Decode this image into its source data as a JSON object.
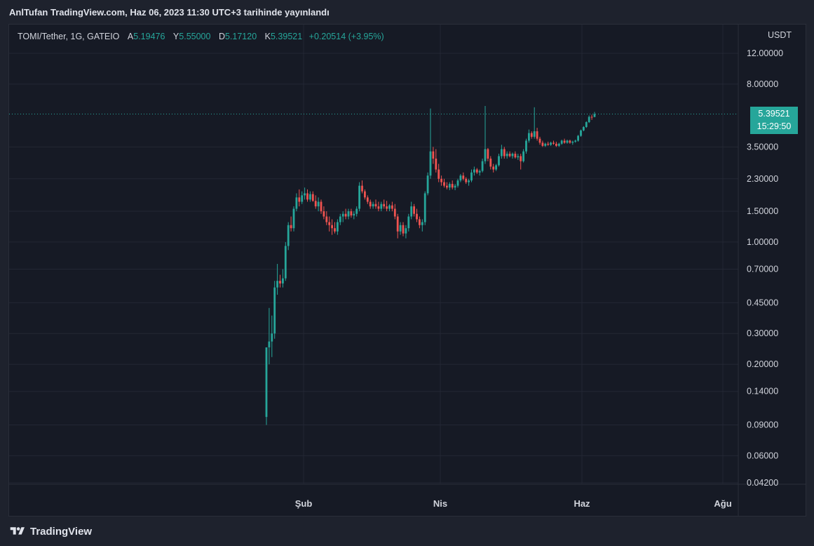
{
  "header": {
    "publish_text": "AnlTufan TradingView.com, Haz 06, 2023 11:30 UTC+3 tarihinde yayınlandı"
  },
  "legend": {
    "symbol": "TOMI/Tether, 1G, GATEIO",
    "open_label": "A",
    "open": "5.19476",
    "high_label": "Y",
    "high": "5.55000",
    "low_label": "D",
    "low": "5.17120",
    "close_label": "K",
    "close": "5.39521",
    "change": "+0.20514 (+3.95%)"
  },
  "axis": {
    "unit": "USDT"
  },
  "last_price": {
    "price": "5.39521",
    "countdown": "15:29:50"
  },
  "footer": {
    "brand": "TradingView"
  },
  "colors": {
    "up": "#26a69a",
    "down": "#ef5350",
    "background": "#161a25"
  },
  "chart_data": {
    "type": "candlestick",
    "scale": "log",
    "grid": true,
    "y_ticks": [
      "12.00000",
      "8.00000",
      "5.39521",
      "3.50000",
      "2.30000",
      "1.50000",
      "1.00000",
      "0.70000",
      "0.45000",
      "0.30000",
      "0.20000",
      "0.14000",
      "0.09000",
      "0.06000",
      "0.04200"
    ],
    "y_tick_values": [
      12,
      8,
      3.5,
      2.3,
      1.5,
      1.0,
      0.7,
      0.45,
      0.3,
      0.2,
      0.14,
      0.09,
      0.06,
      0.042
    ],
    "x_labels": [
      "Şub",
      "Nis",
      "Haz",
      "Ağu"
    ],
    "last_close": 5.39521,
    "series": [
      {
        "d": 0,
        "o": 0.1,
        "h": 0.25,
        "l": 0.09,
        "c": 0.25
      },
      {
        "d": 1,
        "o": 0.25,
        "h": 0.42,
        "l": 0.2,
        "c": 0.27
      },
      {
        "d": 2,
        "o": 0.27,
        "h": 0.38,
        "l": 0.22,
        "c": 0.3
      },
      {
        "d": 3,
        "o": 0.3,
        "h": 0.6,
        "l": 0.28,
        "c": 0.55
      },
      {
        "d": 4,
        "o": 0.55,
        "h": 0.75,
        "l": 0.5,
        "c": 0.6
      },
      {
        "d": 5,
        "o": 0.6,
        "h": 0.65,
        "l": 0.55,
        "c": 0.58
      },
      {
        "d": 6,
        "o": 0.58,
        "h": 0.7,
        "l": 0.55,
        "c": 0.62
      },
      {
        "d": 7,
        "o": 0.62,
        "h": 1.0,
        "l": 0.6,
        "c": 0.95
      },
      {
        "d": 8,
        "o": 0.95,
        "h": 1.3,
        "l": 0.9,
        "c": 1.25
      },
      {
        "d": 9,
        "o": 1.25,
        "h": 1.4,
        "l": 1.15,
        "c": 1.2
      },
      {
        "d": 10,
        "o": 1.2,
        "h": 1.6,
        "l": 1.15,
        "c": 1.55
      },
      {
        "d": 11,
        "o": 1.55,
        "h": 1.9,
        "l": 1.5,
        "c": 1.8
      },
      {
        "d": 12,
        "o": 1.8,
        "h": 2.0,
        "l": 1.6,
        "c": 1.7
      },
      {
        "d": 13,
        "o": 1.7,
        "h": 1.95,
        "l": 1.65,
        "c": 1.85
      },
      {
        "d": 14,
        "o": 1.85,
        "h": 2.05,
        "l": 1.75,
        "c": 1.9
      },
      {
        "d": 15,
        "o": 1.9,
        "h": 2.0,
        "l": 1.7,
        "c": 1.75
      },
      {
        "d": 16,
        "o": 1.75,
        "h": 1.95,
        "l": 1.7,
        "c": 1.88
      },
      {
        "d": 17,
        "o": 1.88,
        "h": 1.95,
        "l": 1.7,
        "c": 1.72
      },
      {
        "d": 18,
        "o": 1.72,
        "h": 1.85,
        "l": 1.55,
        "c": 1.6
      },
      {
        "d": 19,
        "o": 1.6,
        "h": 1.8,
        "l": 1.5,
        "c": 1.7
      },
      {
        "d": 20,
        "o": 1.7,
        "h": 1.75,
        "l": 1.45,
        "c": 1.5
      },
      {
        "d": 21,
        "o": 1.5,
        "h": 1.6,
        "l": 1.35,
        "c": 1.4
      },
      {
        "d": 22,
        "o": 1.4,
        "h": 1.5,
        "l": 1.25,
        "c": 1.3
      },
      {
        "d": 23,
        "o": 1.3,
        "h": 1.4,
        "l": 1.15,
        "c": 1.25
      },
      {
        "d": 24,
        "o": 1.25,
        "h": 1.35,
        "l": 1.1,
        "c": 1.2
      },
      {
        "d": 25,
        "o": 1.2,
        "h": 1.3,
        "l": 1.12,
        "c": 1.15
      },
      {
        "d": 26,
        "o": 1.15,
        "h": 1.35,
        "l": 1.1,
        "c": 1.3
      },
      {
        "d": 27,
        "o": 1.3,
        "h": 1.45,
        "l": 1.25,
        "c": 1.4
      },
      {
        "d": 28,
        "o": 1.4,
        "h": 1.5,
        "l": 1.3,
        "c": 1.45
      },
      {
        "d": 29,
        "o": 1.45,
        "h": 1.55,
        "l": 1.35,
        "c": 1.4
      },
      {
        "d": 30,
        "o": 1.4,
        "h": 1.55,
        "l": 1.35,
        "c": 1.5
      },
      {
        "d": 31,
        "o": 1.5,
        "h": 1.55,
        "l": 1.38,
        "c": 1.42
      },
      {
        "d": 32,
        "o": 1.42,
        "h": 1.5,
        "l": 1.35,
        "c": 1.45
      },
      {
        "d": 33,
        "o": 1.45,
        "h": 1.6,
        "l": 1.4,
        "c": 1.55
      },
      {
        "d": 34,
        "o": 1.55,
        "h": 2.2,
        "l": 1.5,
        "c": 2.1
      },
      {
        "d": 35,
        "o": 2.1,
        "h": 2.25,
        "l": 1.9,
        "c": 1.95
      },
      {
        "d": 36,
        "o": 1.95,
        "h": 2.0,
        "l": 1.75,
        "c": 1.8
      },
      {
        "d": 37,
        "o": 1.8,
        "h": 1.85,
        "l": 1.65,
        "c": 1.7
      },
      {
        "d": 38,
        "o": 1.7,
        "h": 1.75,
        "l": 1.55,
        "c": 1.6
      },
      {
        "d": 39,
        "o": 1.6,
        "h": 1.7,
        "l": 1.55,
        "c": 1.65
      },
      {
        "d": 40,
        "o": 1.65,
        "h": 1.75,
        "l": 1.55,
        "c": 1.6
      },
      {
        "d": 41,
        "o": 1.6,
        "h": 1.7,
        "l": 1.5,
        "c": 1.55
      },
      {
        "d": 42,
        "o": 1.55,
        "h": 1.7,
        "l": 1.5,
        "c": 1.65
      },
      {
        "d": 43,
        "o": 1.65,
        "h": 1.75,
        "l": 1.55,
        "c": 1.6
      },
      {
        "d": 44,
        "o": 1.6,
        "h": 1.72,
        "l": 1.5,
        "c": 1.55
      },
      {
        "d": 45,
        "o": 1.55,
        "h": 1.65,
        "l": 1.5,
        "c": 1.62
      },
      {
        "d": 46,
        "o": 1.62,
        "h": 1.7,
        "l": 1.5,
        "c": 1.55
      },
      {
        "d": 47,
        "o": 1.55,
        "h": 1.65,
        "l": 1.35,
        "c": 1.4
      },
      {
        "d": 48,
        "o": 1.4,
        "h": 1.45,
        "l": 1.05,
        "c": 1.15
      },
      {
        "d": 49,
        "o": 1.15,
        "h": 1.3,
        "l": 1.1,
        "c": 1.25
      },
      {
        "d": 50,
        "o": 1.25,
        "h": 1.3,
        "l": 1.08,
        "c": 1.12
      },
      {
        "d": 51,
        "o": 1.12,
        "h": 1.25,
        "l": 1.05,
        "c": 1.2
      },
      {
        "d": 52,
        "o": 1.2,
        "h": 1.45,
        "l": 1.15,
        "c": 1.4
      },
      {
        "d": 53,
        "o": 1.4,
        "h": 1.7,
        "l": 1.35,
        "c": 1.6
      },
      {
        "d": 54,
        "o": 1.6,
        "h": 1.65,
        "l": 1.4,
        "c": 1.45
      },
      {
        "d": 55,
        "o": 1.45,
        "h": 1.55,
        "l": 1.3,
        "c": 1.35
      },
      {
        "d": 56,
        "o": 1.35,
        "h": 1.4,
        "l": 1.2,
        "c": 1.25
      },
      {
        "d": 57,
        "o": 1.25,
        "h": 1.35,
        "l": 1.15,
        "c": 1.3
      },
      {
        "d": 58,
        "o": 1.3,
        "h": 1.95,
        "l": 1.25,
        "c": 1.9
      },
      {
        "d": 59,
        "o": 1.9,
        "h": 2.5,
        "l": 1.85,
        "c": 2.4
      },
      {
        "d": 60,
        "o": 2.4,
        "h": 5.8,
        "l": 2.3,
        "c": 3.3
      },
      {
        "d": 61,
        "o": 3.3,
        "h": 3.5,
        "l": 2.8,
        "c": 3.0
      },
      {
        "d": 62,
        "o": 3.0,
        "h": 3.4,
        "l": 2.5,
        "c": 2.6
      },
      {
        "d": 63,
        "o": 2.6,
        "h": 2.8,
        "l": 2.2,
        "c": 2.3
      },
      {
        "d": 64,
        "o": 2.3,
        "h": 2.4,
        "l": 2.1,
        "c": 2.2
      },
      {
        "d": 65,
        "o": 2.2,
        "h": 2.3,
        "l": 2.05,
        "c": 2.1
      },
      {
        "d": 66,
        "o": 2.1,
        "h": 2.2,
        "l": 2.0,
        "c": 2.05
      },
      {
        "d": 67,
        "o": 2.05,
        "h": 2.2,
        "l": 1.98,
        "c": 2.15
      },
      {
        "d": 68,
        "o": 2.15,
        "h": 2.25,
        "l": 2.0,
        "c": 2.05
      },
      {
        "d": 69,
        "o": 2.05,
        "h": 2.15,
        "l": 1.98,
        "c": 2.1
      },
      {
        "d": 70,
        "o": 2.1,
        "h": 2.3,
        "l": 2.05,
        "c": 2.25
      },
      {
        "d": 71,
        "o": 2.25,
        "h": 2.45,
        "l": 2.2,
        "c": 2.4
      },
      {
        "d": 72,
        "o": 2.4,
        "h": 2.5,
        "l": 2.25,
        "c": 2.3
      },
      {
        "d": 73,
        "o": 2.3,
        "h": 2.35,
        "l": 2.15,
        "c": 2.2
      },
      {
        "d": 74,
        "o": 2.2,
        "h": 2.3,
        "l": 2.1,
        "c": 2.25
      },
      {
        "d": 75,
        "o": 2.25,
        "h": 2.6,
        "l": 2.2,
        "c": 2.5
      },
      {
        "d": 76,
        "o": 2.5,
        "h": 2.7,
        "l": 2.4,
        "c": 2.6
      },
      {
        "d": 77,
        "o": 2.6,
        "h": 2.65,
        "l": 2.45,
        "c": 2.5
      },
      {
        "d": 78,
        "o": 2.5,
        "h": 2.6,
        "l": 2.4,
        "c": 2.55
      },
      {
        "d": 79,
        "o": 2.55,
        "h": 3.0,
        "l": 2.5,
        "c": 2.9
      },
      {
        "d": 80,
        "o": 2.9,
        "h": 6.0,
        "l": 2.8,
        "c": 3.4
      },
      {
        "d": 81,
        "o": 3.4,
        "h": 3.45,
        "l": 2.9,
        "c": 3.0
      },
      {
        "d": 82,
        "o": 3.0,
        "h": 3.1,
        "l": 2.6,
        "c": 2.7
      },
      {
        "d": 83,
        "o": 2.7,
        "h": 2.8,
        "l": 2.5,
        "c": 2.6
      },
      {
        "d": 84,
        "o": 2.6,
        "h": 2.8,
        "l": 2.55,
        "c": 2.75
      },
      {
        "d": 85,
        "o": 2.75,
        "h": 3.2,
        "l": 2.7,
        "c": 3.1
      },
      {
        "d": 86,
        "o": 3.1,
        "h": 3.6,
        "l": 3.0,
        "c": 3.4
      },
      {
        "d": 87,
        "o": 3.4,
        "h": 3.5,
        "l": 3.0,
        "c": 3.1
      },
      {
        "d": 88,
        "o": 3.1,
        "h": 3.3,
        "l": 3.0,
        "c": 3.2
      },
      {
        "d": 89,
        "o": 3.2,
        "h": 3.3,
        "l": 3.05,
        "c": 3.1
      },
      {
        "d": 90,
        "o": 3.1,
        "h": 3.25,
        "l": 3.0,
        "c": 3.2
      },
      {
        "d": 91,
        "o": 3.2,
        "h": 3.3,
        "l": 3.0,
        "c": 3.05
      },
      {
        "d": 92,
        "o": 3.05,
        "h": 3.2,
        "l": 2.95,
        "c": 3.1
      },
      {
        "d": 93,
        "o": 3.1,
        "h": 3.2,
        "l": 2.6,
        "c": 2.9
      },
      {
        "d": 94,
        "o": 2.9,
        "h": 3.4,
        "l": 2.85,
        "c": 3.3
      },
      {
        "d": 95,
        "o": 3.3,
        "h": 3.9,
        "l": 3.2,
        "c": 3.8
      },
      {
        "d": 96,
        "o": 3.8,
        "h": 4.4,
        "l": 3.7,
        "c": 4.2
      },
      {
        "d": 97,
        "o": 4.2,
        "h": 4.3,
        "l": 3.9,
        "c": 4.0
      },
      {
        "d": 98,
        "o": 4.0,
        "h": 5.9,
        "l": 3.9,
        "c": 4.3
      },
      {
        "d": 99,
        "o": 4.3,
        "h": 4.5,
        "l": 3.8,
        "c": 3.9
      },
      {
        "d": 100,
        "o": 3.9,
        "h": 4.0,
        "l": 3.6,
        "c": 3.7
      },
      {
        "d": 101,
        "o": 3.7,
        "h": 3.8,
        "l": 3.5,
        "c": 3.55
      },
      {
        "d": 102,
        "o": 3.55,
        "h": 3.7,
        "l": 3.5,
        "c": 3.65
      },
      {
        "d": 103,
        "o": 3.65,
        "h": 3.75,
        "l": 3.55,
        "c": 3.6
      },
      {
        "d": 104,
        "o": 3.6,
        "h": 3.75,
        "l": 3.55,
        "c": 3.7
      },
      {
        "d": 105,
        "o": 3.7,
        "h": 3.8,
        "l": 3.6,
        "c": 3.65
      },
      {
        "d": 106,
        "o": 3.65,
        "h": 3.75,
        "l": 3.5,
        "c": 3.55
      },
      {
        "d": 107,
        "o": 3.55,
        "h": 3.7,
        "l": 3.5,
        "c": 3.65
      },
      {
        "d": 108,
        "o": 3.65,
        "h": 3.85,
        "l": 3.6,
        "c": 3.8
      },
      {
        "d": 109,
        "o": 3.8,
        "h": 3.9,
        "l": 3.65,
        "c": 3.7
      },
      {
        "d": 110,
        "o": 3.7,
        "h": 3.85,
        "l": 3.65,
        "c": 3.8
      },
      {
        "d": 111,
        "o": 3.8,
        "h": 3.85,
        "l": 3.65,
        "c": 3.7
      },
      {
        "d": 112,
        "o": 3.7,
        "h": 3.8,
        "l": 3.6,
        "c": 3.75
      },
      {
        "d": 113,
        "o": 3.75,
        "h": 3.85,
        "l": 3.7,
        "c": 3.8
      },
      {
        "d": 114,
        "o": 3.8,
        "h": 4.1,
        "l": 3.75,
        "c": 4.05
      },
      {
        "d": 115,
        "o": 4.05,
        "h": 4.4,
        "l": 4.0,
        "c": 4.35
      },
      {
        "d": 116,
        "o": 4.35,
        "h": 4.6,
        "l": 4.3,
        "c": 4.55
      },
      {
        "d": 117,
        "o": 4.55,
        "h": 4.9,
        "l": 4.5,
        "c": 4.85
      },
      {
        "d": 118,
        "o": 4.85,
        "h": 5.3,
        "l": 4.8,
        "c": 5.2
      },
      {
        "d": 119,
        "o": 5.2,
        "h": 5.35,
        "l": 5.0,
        "c": 5.19476
      },
      {
        "d": 120,
        "o": 5.19476,
        "h": 5.55,
        "l": 5.1712,
        "c": 5.39521
      }
    ]
  }
}
